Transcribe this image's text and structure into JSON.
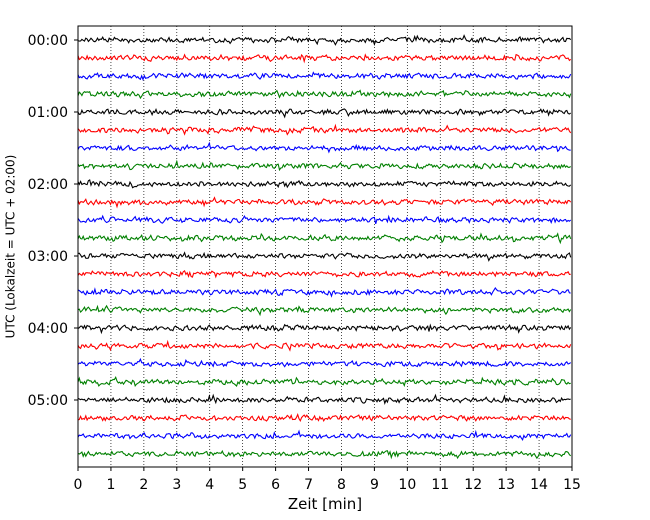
{
  "chart_data": {
    "type": "line",
    "title": "",
    "xlabel": "Zeit  [min]",
    "ylabel": "UTC (Lokalzeit = UTC + 02:00)",
    "xlim": [
      0,
      15
    ],
    "x_ticks": [
      "0",
      "1",
      "2",
      "3",
      "4",
      "5",
      "6",
      "7",
      "8",
      "9",
      "10",
      "11",
      "12",
      "13",
      "14",
      "15"
    ],
    "y_ticks": [
      "00:00",
      "01:00",
      "02:00",
      "03:00",
      "04:00",
      "05:00"
    ],
    "grid": "vertical dotted at each minute",
    "trace_interval_minutes": 15,
    "trace_count": 24,
    "trace_colors": [
      "#000000",
      "#ff0000",
      "#0000ff",
      "#008000"
    ],
    "amplitude": "low-level seismic noise, no significant events"
  }
}
